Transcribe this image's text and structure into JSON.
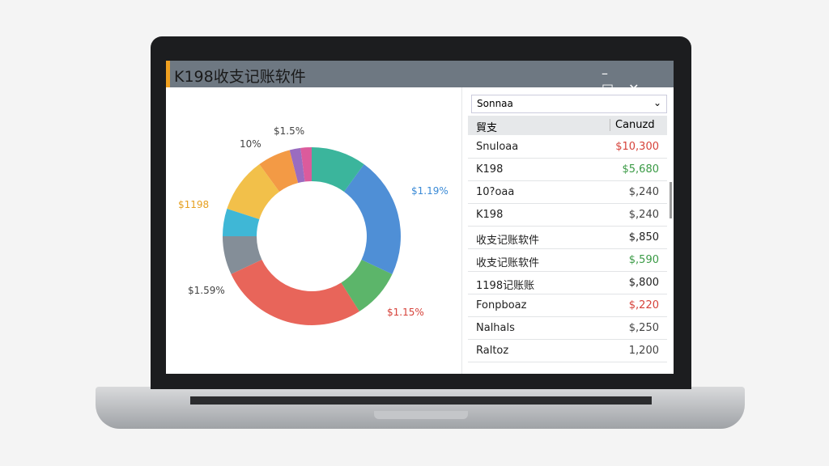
{
  "window": {
    "title": "K198收支记账软件"
  },
  "donut": {
    "segments": [
      {
        "value": 10,
        "color": "#3bb59c"
      },
      {
        "value": 22,
        "color": "#4f8fd6"
      },
      {
        "value": 9,
        "color": "#5cb56a"
      },
      {
        "value": 27,
        "color": "#e8655a"
      },
      {
        "value": 7,
        "color": "#848e98"
      },
      {
        "value": 5,
        "color": "#3fb7d6"
      },
      {
        "value": 10,
        "color": "#f2c04a"
      },
      {
        "value": 6,
        "color": "#f39a45"
      },
      {
        "value": 2,
        "color": "#9a6cc0"
      },
      {
        "value": 2,
        "color": "#db5b9c"
      }
    ],
    "labels": [
      "$1.5%",
      "10%",
      "$1198",
      "$1.59%",
      "$1.15%",
      "$1.19%"
    ]
  },
  "dropdown": "Sonnaa",
  "table": {
    "header": [
      "貿支",
      "Canuzd"
    ],
    "rows": [
      {
        "name": "Snuloaa",
        "amount": "$10,300",
        "color": "#d6423a"
      },
      {
        "name": "K198",
        "amount": "$5,680",
        "color": "#3a9a45"
      },
      {
        "name": "10?oaa",
        "amount": "$,240",
        "color": "#444444"
      },
      {
        "name": "K198",
        "amount": "$,240",
        "color": "#444444"
      },
      {
        "name": "收支记账软件",
        "amount": "$,850",
        "color": "#222222"
      },
      {
        "name": "收支记账软件",
        "amount": "$,590",
        "color": "#3a9a45"
      },
      {
        "name": "1198记账账",
        "amount": "$,800",
        "color": "#222222"
      },
      {
        "name": "Fonpboaz",
        "amount": "$,220",
        "color": "#d6423a"
      },
      {
        "name": "Nalhals",
        "amount": "$,250",
        "color": "#444444"
      },
      {
        "name": "Raltoz",
        "amount": "1,200",
        "color": "#444444"
      }
    ]
  }
}
